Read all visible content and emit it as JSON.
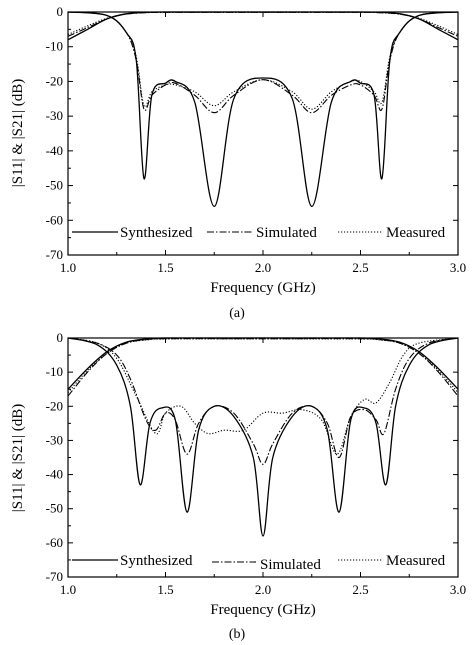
{
  "chart_data": [
    {
      "panel": "(a)",
      "type": "line",
      "xlabel": "Frequency (GHz)",
      "ylabel": "|S11| & |S21| (dB)",
      "xlim": [
        1.0,
        3.0
      ],
      "ylim": [
        -70,
        0
      ],
      "xticks": [
        "1.0",
        "1.5",
        "2.0",
        "2.5",
        "3.0"
      ],
      "yticks": [
        "0",
        "-10",
        "-20",
        "-30",
        "-40",
        "-50",
        "-60",
        "-70"
      ],
      "legend": [
        "Synthesized",
        "Simulated",
        "Measured"
      ],
      "legend_position": "bottom",
      "grid": false,
      "series": [
        {
          "name": "Synthesized",
          "style": "solid",
          "role": "S11",
          "x": [
            1.0,
            1.2,
            1.3,
            1.35,
            1.39,
            1.43,
            1.5,
            1.55,
            1.65,
            1.75,
            1.85,
            2.0,
            2.15,
            2.25,
            2.35,
            2.45,
            2.5,
            2.57,
            2.61,
            2.65,
            2.7,
            2.8,
            3.0
          ],
          "y": [
            0,
            -1,
            -6,
            -14,
            -48,
            -24,
            -20.5,
            -20,
            -26,
            -56,
            -25,
            -19,
            -25,
            -56,
            -26,
            -20,
            -20.5,
            -24,
            -48,
            -14,
            -6,
            -1,
            0
          ]
        },
        {
          "name": "Simulated",
          "style": "dashdot",
          "role": "S11",
          "x": [
            1.0,
            1.2,
            1.3,
            1.35,
            1.39,
            1.43,
            1.5,
            1.55,
            1.65,
            1.75,
            1.85,
            2.0,
            2.15,
            2.25,
            2.35,
            2.45,
            2.5,
            2.57,
            2.61,
            2.65,
            2.7,
            2.8,
            3.0
          ],
          "y": [
            0,
            -1,
            -6,
            -14,
            -28,
            -24,
            -21,
            -20.5,
            -24,
            -29,
            -24,
            -19.5,
            -24,
            -29,
            -24,
            -21,
            -21,
            -24,
            -28,
            -14,
            -6,
            -1,
            0
          ]
        },
        {
          "name": "Measured",
          "style": "dotted",
          "role": "S11",
          "x": [
            1.0,
            1.2,
            1.3,
            1.35,
            1.39,
            1.43,
            1.5,
            1.55,
            1.65,
            1.75,
            1.85,
            2.0,
            2.15,
            2.25,
            2.35,
            2.45,
            2.5,
            2.57,
            2.61,
            2.65,
            2.7,
            2.8,
            3.0
          ],
          "y": [
            0,
            -1,
            -6,
            -13,
            -27,
            -23,
            -21,
            -21,
            -23,
            -27,
            -23,
            -19.5,
            -23,
            -28,
            -23,
            -20,
            -20,
            -23,
            -26,
            -13,
            -6,
            -1,
            0
          ]
        },
        {
          "name": "Synthesized",
          "style": "solid",
          "role": "S21",
          "x": [
            1.0,
            1.1,
            1.2,
            1.3,
            1.4,
            1.5,
            2.0,
            2.5,
            2.6,
            2.7,
            2.8,
            2.9,
            3.0
          ],
          "y": [
            -8,
            -5,
            -2,
            -0.5,
            -0.1,
            0,
            0,
            0,
            -0.1,
            -0.5,
            -2,
            -5,
            -8
          ]
        },
        {
          "name": "Simulated",
          "style": "dashdot",
          "role": "S21",
          "x": [
            1.0,
            1.1,
            1.2,
            1.3,
            1.4,
            1.5,
            2.0,
            2.5,
            2.6,
            2.7,
            2.8,
            2.9,
            3.0
          ],
          "y": [
            -7,
            -4.5,
            -2,
            -0.6,
            -0.2,
            -0.1,
            -0.1,
            -0.1,
            -0.2,
            -0.6,
            -2,
            -4.5,
            -7
          ]
        },
        {
          "name": "Measured",
          "style": "dotted",
          "role": "S21",
          "x": [
            1.0,
            1.1,
            1.2,
            1.3,
            1.4,
            1.5,
            2.0,
            2.5,
            2.6,
            2.7,
            2.8,
            2.9,
            3.0
          ],
          "y": [
            -6.5,
            -4,
            -1.8,
            -0.6,
            -0.2,
            -0.1,
            -0.1,
            -0.1,
            -0.2,
            -0.6,
            -1.8,
            -4,
            -6.5
          ]
        }
      ]
    },
    {
      "panel": "(b)",
      "type": "line",
      "xlabel": "Frequency (GHz)",
      "ylabel": "|S11| & |S21| (dB)",
      "xlim": [
        1.0,
        3.0
      ],
      "ylim": [
        -70,
        0
      ],
      "xticks": [
        "1.0",
        "1.5",
        "2.0",
        "2.5",
        "3.0"
      ],
      "yticks": [
        "0",
        "-10",
        "-20",
        "-30",
        "-40",
        "-50",
        "-60",
        "-70"
      ],
      "legend": [
        "Synthesized",
        "Simulated",
        "Measured"
      ],
      "legend_position": "bottom",
      "grid": false,
      "series": [
        {
          "name": "Synthesized",
          "style": "solid",
          "role": "S11",
          "x": [
            1.0,
            1.15,
            1.25,
            1.32,
            1.37,
            1.42,
            1.48,
            1.55,
            1.61,
            1.67,
            1.75,
            1.85,
            1.95,
            2.0,
            2.05,
            2.15,
            2.25,
            2.33,
            2.39,
            2.45,
            2.52,
            2.58,
            2.63,
            2.68,
            2.75,
            2.85,
            3.0
          ],
          "y": [
            0,
            -2,
            -8,
            -20,
            -43,
            -25,
            -20.5,
            -24,
            -51,
            -27,
            -20,
            -23,
            -35,
            -58,
            -35,
            -23,
            -20,
            -27,
            -51,
            -24,
            -20.5,
            -25,
            -43,
            -20,
            -8,
            -2,
            0
          ]
        },
        {
          "name": "Simulated",
          "style": "dashdot",
          "role": "S11",
          "x": [
            1.0,
            1.15,
            1.25,
            1.32,
            1.4,
            1.45,
            1.5,
            1.55,
            1.61,
            1.67,
            1.75,
            1.85,
            1.95,
            2.0,
            2.05,
            2.15,
            2.25,
            2.33,
            2.39,
            2.45,
            2.52,
            2.58,
            2.62,
            2.68,
            2.75,
            2.85,
            3.0
          ],
          "y": [
            0,
            -1.5,
            -5,
            -12,
            -24,
            -27,
            -22,
            -24,
            -34,
            -25,
            -20,
            -22,
            -31,
            -37,
            -31,
            -22,
            -20,
            -25,
            -35,
            -23,
            -21,
            -24,
            -28,
            -15,
            -6,
            -1.5,
            0
          ]
        },
        {
          "name": "Measured",
          "style": "dotted",
          "role": "S11",
          "x": [
            1.0,
            1.15,
            1.25,
            1.35,
            1.45,
            1.5,
            1.58,
            1.65,
            1.72,
            1.8,
            1.9,
            2.0,
            2.1,
            2.2,
            2.3,
            2.38,
            2.45,
            2.52,
            2.58,
            2.65,
            2.72,
            2.8,
            3.0
          ],
          "y": [
            0,
            -1.5,
            -6,
            -17,
            -28,
            -22,
            -20,
            -25,
            -28,
            -27,
            -27,
            -22,
            -22,
            -21,
            -24,
            -34,
            -23,
            -18,
            -19,
            -13,
            -5,
            -1.5,
            0
          ]
        },
        {
          "name": "Synthesized",
          "style": "solid",
          "role": "S21",
          "x": [
            1.0,
            1.1,
            1.2,
            1.3,
            1.4,
            1.5,
            2.0,
            2.5,
            2.6,
            2.7,
            2.8,
            2.9,
            3.0
          ],
          "y": [
            -15,
            -9,
            -4,
            -1.2,
            -0.3,
            0,
            0,
            0,
            -0.3,
            -1.2,
            -4,
            -9,
            -15
          ]
        },
        {
          "name": "Simulated",
          "style": "dashdot",
          "role": "S21",
          "x": [
            1.0,
            1.1,
            1.2,
            1.3,
            1.4,
            1.5,
            2.0,
            2.5,
            2.6,
            2.7,
            2.8,
            2.9,
            3.0
          ],
          "y": [
            -17,
            -10,
            -4.5,
            -1.5,
            -0.5,
            -0.2,
            -0.2,
            -0.2,
            -0.5,
            -1.5,
            -4.5,
            -10,
            -17
          ]
        },
        {
          "name": "Measured",
          "style": "dotted",
          "role": "S21",
          "x": [
            1.0,
            1.1,
            1.2,
            1.3,
            1.4,
            1.5,
            2.0,
            2.5,
            2.6,
            2.7,
            2.8,
            2.9,
            3.0
          ],
          "y": [
            -16,
            -9.5,
            -4.5,
            -1.5,
            -0.6,
            -0.3,
            -0.3,
            -0.3,
            -0.6,
            -1.5,
            -4.5,
            -9.5,
            -16
          ]
        }
      ]
    }
  ]
}
